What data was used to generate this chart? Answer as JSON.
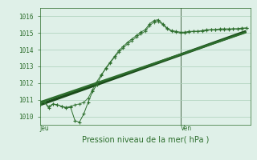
{
  "xlabel": "Pression niveau de la mer( hPa )",
  "bg_color": "#dff0e8",
  "grid_color": "#aacfba",
  "line_color": "#2d6e2d",
  "dark_line_color": "#1a4a1a",
  "ylim": [
    1009.5,
    1016.5
  ],
  "yticks": [
    1010,
    1011,
    1012,
    1013,
    1014,
    1015,
    1016
  ],
  "xlim": [
    0,
    48
  ],
  "ven_x": 32,
  "series1_x": [
    0,
    1,
    2,
    3,
    4,
    5,
    6,
    7,
    8,
    9,
    10,
    11,
    12,
    13,
    14,
    15,
    16,
    17,
    18,
    19,
    20,
    21,
    22,
    23,
    24,
    25,
    26,
    27,
    28,
    29,
    30,
    31,
    32,
    33,
    34,
    35,
    36,
    37,
    38,
    39,
    40,
    41,
    42,
    43,
    44,
    45,
    46,
    47
  ],
  "series1_y": [
    1010.7,
    1010.9,
    1010.5,
    1010.75,
    1010.7,
    1010.6,
    1010.5,
    1010.55,
    1009.75,
    1009.65,
    1010.15,
    1010.85,
    1011.5,
    1011.9,
    1012.45,
    1012.9,
    1013.25,
    1013.6,
    1013.95,
    1014.2,
    1014.45,
    1014.65,
    1014.85,
    1015.05,
    1015.2,
    1015.55,
    1015.75,
    1015.8,
    1015.55,
    1015.3,
    1015.15,
    1015.1,
    1015.05,
    1015.05,
    1015.1,
    1015.1,
    1015.1,
    1015.15,
    1015.2,
    1015.2,
    1015.2,
    1015.25,
    1015.25,
    1015.25,
    1015.25,
    1015.25,
    1015.3,
    1015.3
  ],
  "series2_x": [
    0,
    1,
    2,
    3,
    4,
    5,
    6,
    7,
    8,
    9,
    10,
    11,
    12,
    13,
    14,
    15,
    16,
    17,
    18,
    19,
    20,
    21,
    22,
    23,
    24,
    25,
    26,
    27,
    28,
    29,
    30,
    31,
    32,
    33,
    34,
    35,
    36,
    37,
    38,
    39,
    40,
    41,
    42,
    43,
    44,
    45,
    46,
    47
  ],
  "series2_y": [
    1010.75,
    1010.85,
    1010.6,
    1010.75,
    1010.7,
    1010.6,
    1010.55,
    1010.6,
    1010.7,
    1010.75,
    1010.85,
    1011.1,
    1011.6,
    1012.1,
    1012.5,
    1012.85,
    1013.2,
    1013.55,
    1013.85,
    1014.1,
    1014.35,
    1014.55,
    1014.75,
    1014.95,
    1015.1,
    1015.45,
    1015.65,
    1015.7,
    1015.5,
    1015.25,
    1015.1,
    1015.05,
    1015.0,
    1015.0,
    1015.05,
    1015.1,
    1015.1,
    1015.1,
    1015.15,
    1015.2,
    1015.2,
    1015.2,
    1015.2,
    1015.2,
    1015.25,
    1015.25,
    1015.25,
    1015.3
  ],
  "trend1": {
    "x": [
      0,
      47
    ],
    "y": [
      1010.7,
      1015.1
    ]
  },
  "trend2": {
    "x": [
      0,
      47
    ],
    "y": [
      1010.85,
      1015.05
    ]
  },
  "jeu_label": "Jeu",
  "ven_label": "Ven",
  "tick_fontsize": 5.5,
  "xlabel_fontsize": 7
}
